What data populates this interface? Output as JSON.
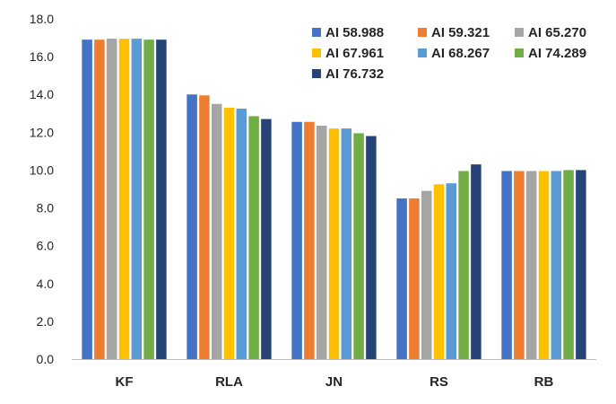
{
  "chart_data": {
    "type": "bar",
    "title": "",
    "xlabel": "",
    "ylabel": "",
    "ylim": [
      0,
      18
    ],
    "yticks": [
      "0.0",
      "2.0",
      "4.0",
      "6.0",
      "8.0",
      "10.0",
      "12.0",
      "14.0",
      "16.0",
      "18.0"
    ],
    "grid": false,
    "legend_position": "top-right",
    "categories": [
      "KF",
      "RLA",
      "JN",
      "RS",
      "RB"
    ],
    "series": [
      {
        "name": "AI 58.988",
        "color": "#4472C4",
        "values": [
          16.9,
          14.0,
          12.55,
          8.5,
          9.95
        ]
      },
      {
        "name": "AI 59.321",
        "color": "#ED7D31",
        "values": [
          16.9,
          13.95,
          12.55,
          8.5,
          9.95
        ]
      },
      {
        "name": "AI 65.270",
        "color": "#A5A5A5",
        "values": [
          16.95,
          13.5,
          12.35,
          8.9,
          9.95
        ]
      },
      {
        "name": "AI 67.961",
        "color": "#FFC000",
        "values": [
          16.95,
          13.3,
          12.2,
          9.25,
          9.95
        ]
      },
      {
        "name": "AI 68.267",
        "color": "#5B9BD5",
        "values": [
          16.95,
          13.25,
          12.2,
          9.3,
          9.95
        ]
      },
      {
        "name": "AI 74.289",
        "color": "#70AD47",
        "values": [
          16.9,
          12.85,
          11.95,
          9.95,
          10.0
        ]
      },
      {
        "name": "AI 76.732",
        "color": "#264478",
        "values": [
          16.9,
          12.7,
          11.8,
          10.3,
          10.0
        ]
      }
    ]
  }
}
